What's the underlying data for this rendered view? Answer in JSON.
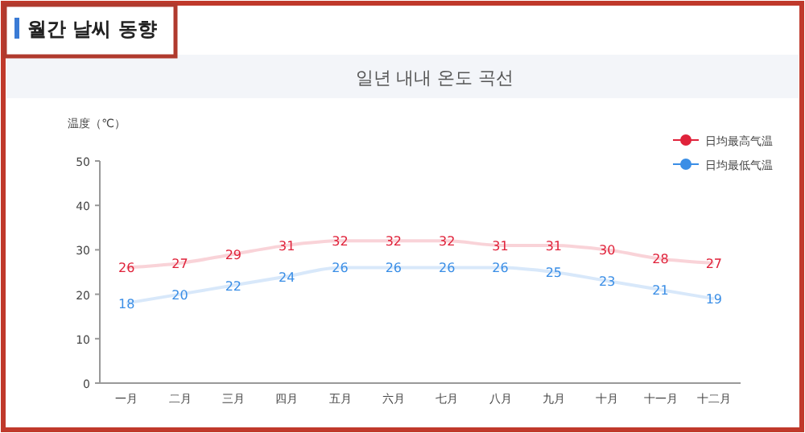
{
  "chart_data": {
    "type": "line",
    "title": "월간 날씨 동향",
    "subtitle": "일년 내내 온도 곡선",
    "ylabel": "温度（℃）",
    "categories": [
      "一月",
      "二月",
      "三月",
      "四月",
      "五月",
      "六月",
      "七月",
      "八月",
      "九月",
      "十月",
      "十一月",
      "十二月"
    ],
    "series": [
      {
        "name": "日均最高气温",
        "color": "#e0223a",
        "values": [
          26,
          27,
          29,
          31,
          32,
          32,
          32,
          31,
          31,
          30,
          28,
          27
        ]
      },
      {
        "name": "日均最低气温",
        "color": "#3a8ee6",
        "values": [
          18,
          20,
          22,
          24,
          26,
          26,
          26,
          26,
          25,
          23,
          21,
          19
        ]
      }
    ],
    "ylim": [
      0,
      50
    ],
    "yticks": [
      0,
      10,
      20,
      30,
      40,
      50
    ],
    "grid": false,
    "legend": "top right",
    "marker": "none",
    "line_style": "solid",
    "data_labels": true
  }
}
